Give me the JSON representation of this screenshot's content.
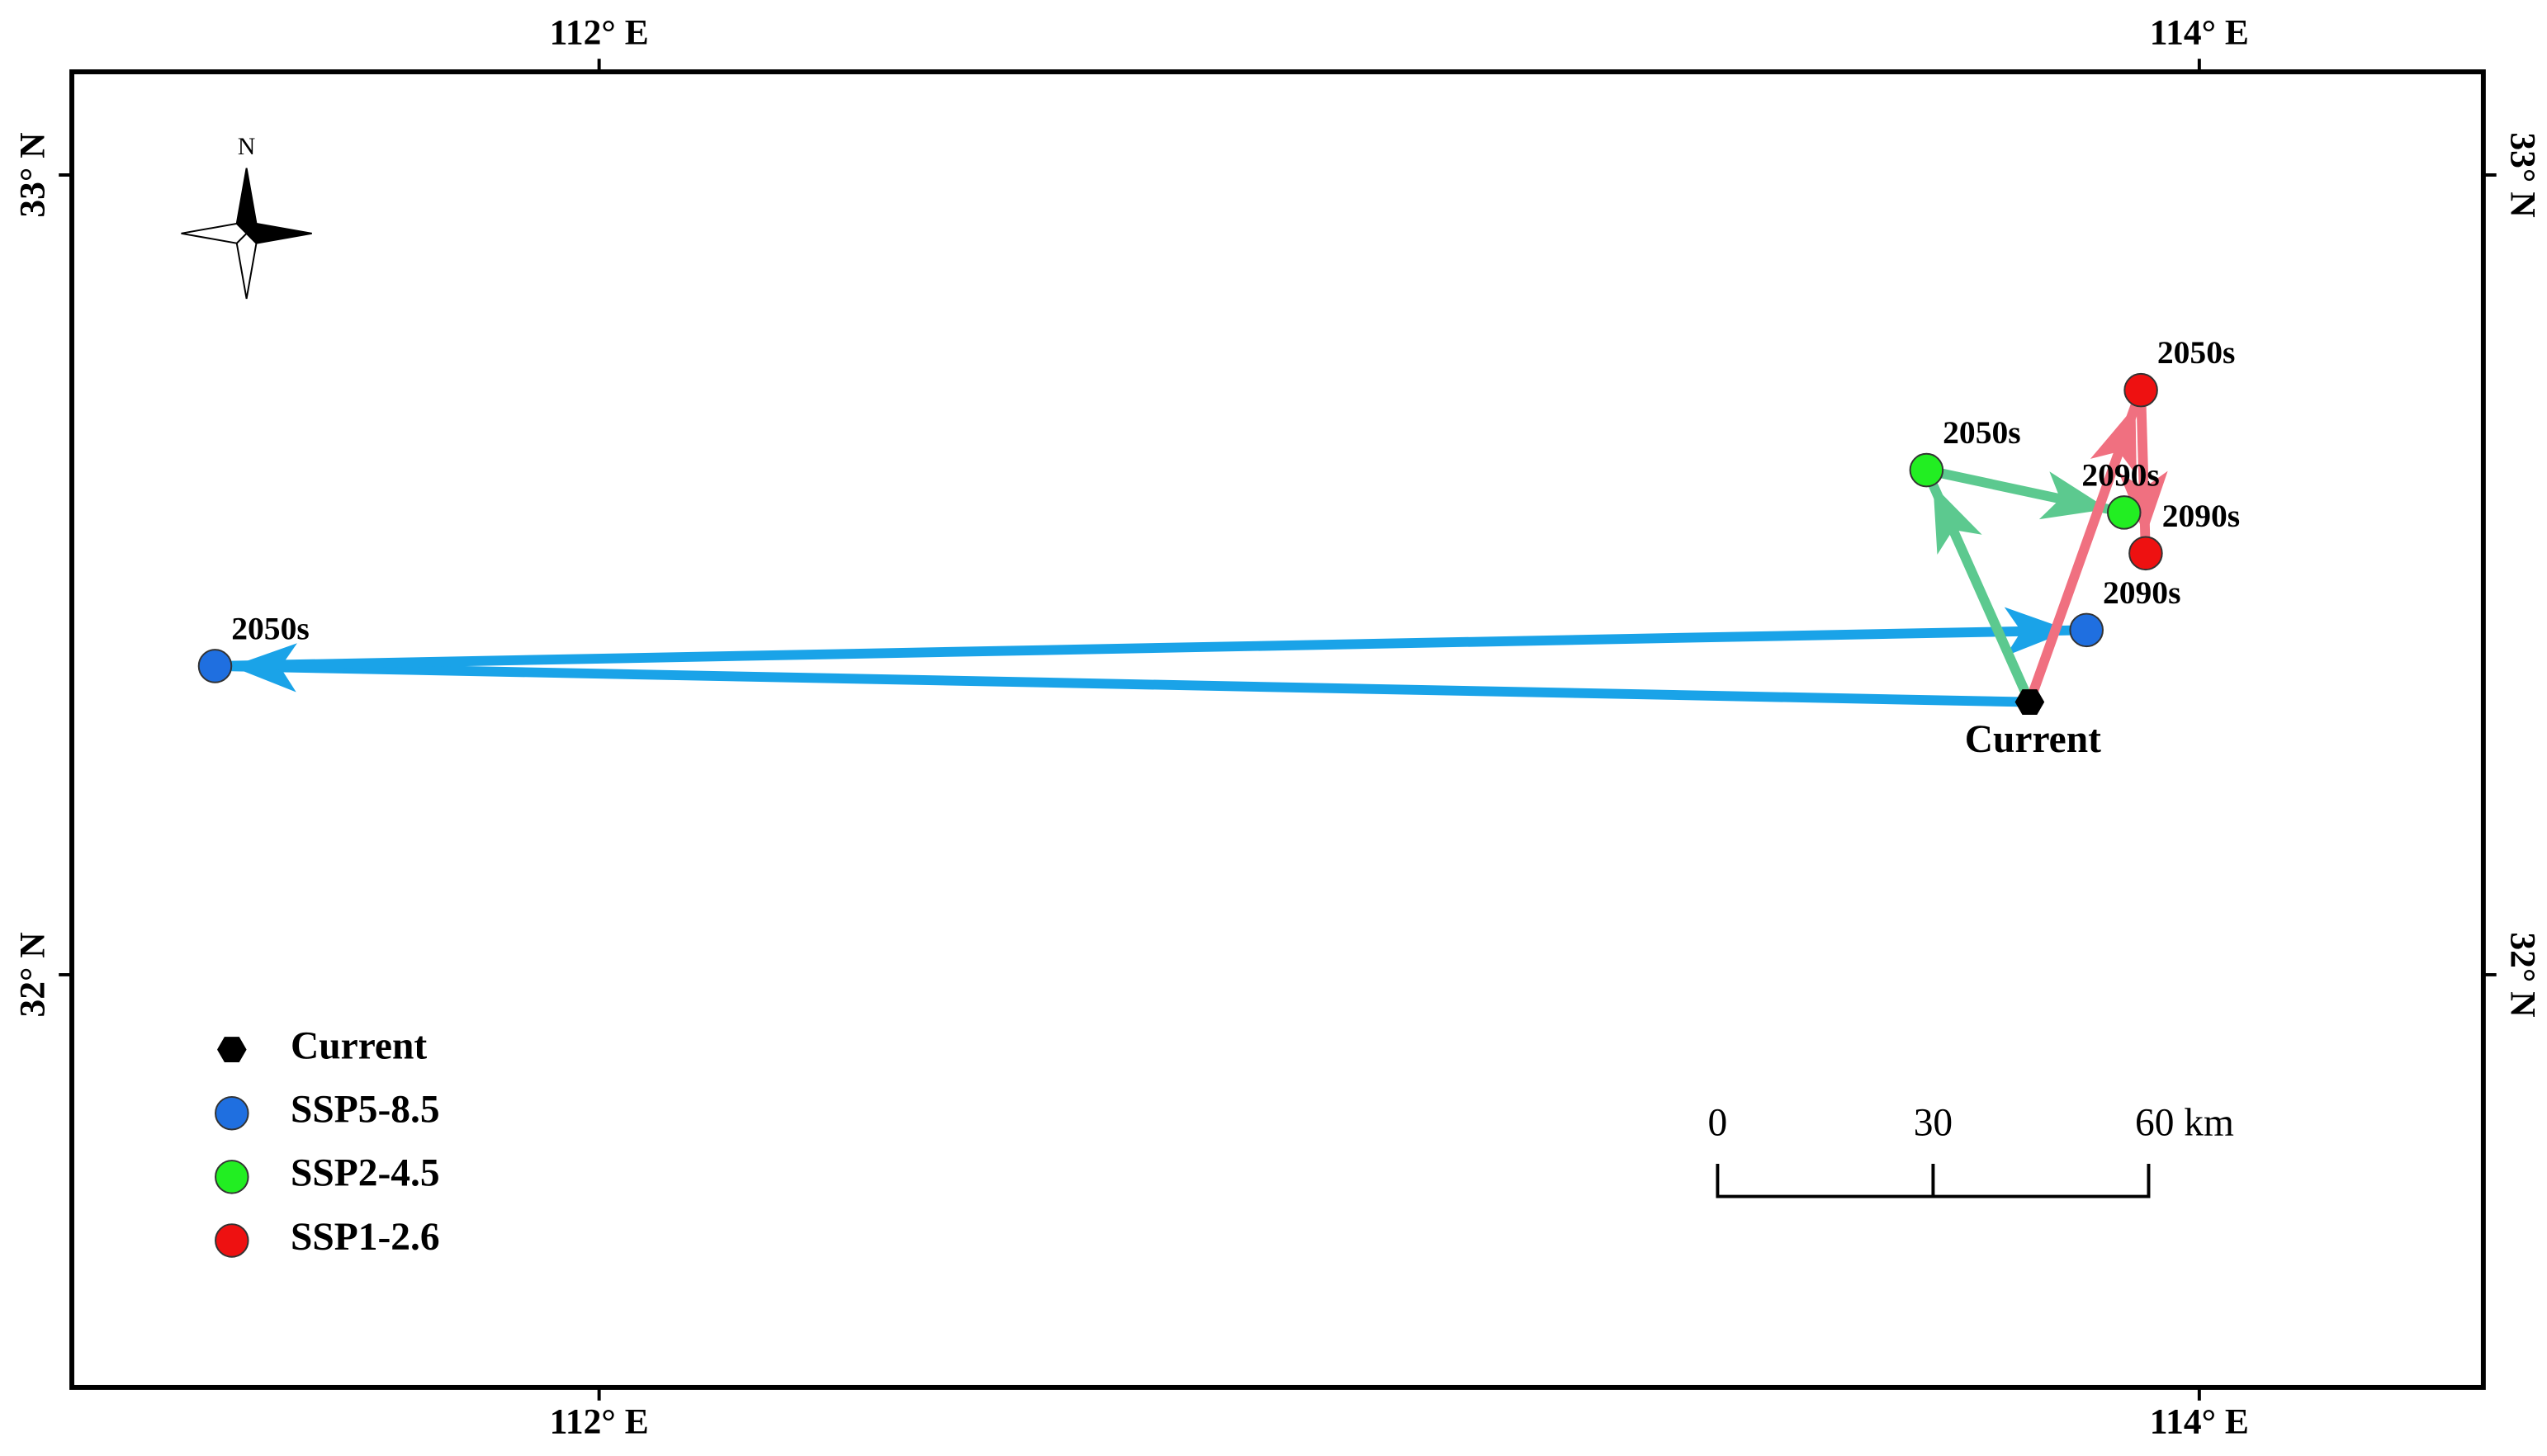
{
  "chart_data": {
    "type": "map",
    "xlim": [
      111.341,
      114.355
    ],
    "ylim": [
      31.484,
      33.129
    ],
    "xticks": [
      {
        "value": 112,
        "label": "112° E"
      },
      {
        "value": 114,
        "label": "114° E"
      }
    ],
    "yticks": [
      {
        "value": 32,
        "label": "32° N"
      },
      {
        "value": 33,
        "label": "33° N"
      }
    ],
    "north_label": "N",
    "current": {
      "name": "Current",
      "color": "#000000",
      "lon": 113.788,
      "lat": 32.341
    },
    "series": [
      {
        "name": "SSP5-8.5",
        "color": "#1f6fe0",
        "arrow_color": "#1aa3e8",
        "labels": [
          "2050s",
          "2090s"
        ],
        "lon": [
          111.52,
          113.859
        ],
        "lat": [
          32.386,
          32.431
        ]
      },
      {
        "name": "SSP2-4.5",
        "color": "#22ee22",
        "arrow_color": "#5cc98f",
        "labels": [
          "2050s",
          "2090s"
        ],
        "lon": [
          113.659,
          113.906
        ],
        "lat": [
          32.631,
          32.578
        ]
      },
      {
        "name": "SSP1-2.6",
        "color": "#ee1111",
        "arrow_color": "#f07080",
        "labels": [
          "2050s",
          "2090s"
        ],
        "lon": [
          113.927,
          113.933
        ],
        "lat": [
          32.731,
          32.527
        ]
      }
    ],
    "scale_bar": {
      "labels": [
        "0",
        "30",
        "60 km"
      ]
    }
  }
}
